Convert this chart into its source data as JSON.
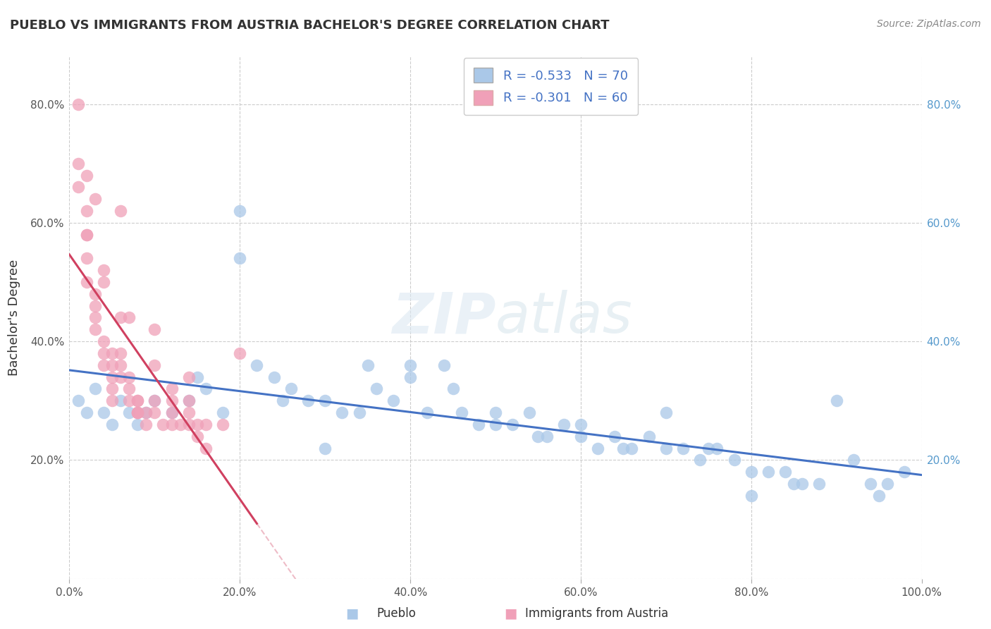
{
  "title": "PUEBLO VS IMMIGRANTS FROM AUSTRIA BACHELOR'S DEGREE CORRELATION CHART",
  "source": "Source: ZipAtlas.com",
  "ylabel": "Bachelor's Degree",
  "legend_label1": "Pueblo",
  "legend_label2": "Immigrants from Austria",
  "R1": -0.533,
  "N1": 70,
  "R2": -0.301,
  "N2": 60,
  "color_blue": "#aac8e8",
  "color_pink": "#f0a0b8",
  "line_color_blue": "#4472c4",
  "line_color_pink": "#d04060",
  "text_color_stat": "#4472c4",
  "xlim": [
    0.0,
    1.0
  ],
  "ylim": [
    0.0,
    0.88
  ],
  "x_ticks": [
    0.0,
    0.2,
    0.4,
    0.6,
    0.8,
    1.0
  ],
  "y_ticks": [
    0.0,
    0.2,
    0.4,
    0.6,
    0.8
  ],
  "x_tick_labels": [
    "0.0%",
    "20.0%",
    "40.0%",
    "60.0%",
    "80.0%",
    "100.0%"
  ],
  "y_tick_labels_left": [
    "",
    "20.0%",
    "40.0%",
    "60.0%",
    "80.0%"
  ],
  "y_tick_labels_right": [
    "",
    "20.0%",
    "40.0%",
    "60.0%",
    "80.0%"
  ],
  "blue_x": [
    0.01,
    0.02,
    0.03,
    0.04,
    0.05,
    0.06,
    0.07,
    0.08,
    0.09,
    0.1,
    0.12,
    0.14,
    0.16,
    0.18,
    0.2,
    0.22,
    0.24,
    0.26,
    0.28,
    0.3,
    0.32,
    0.34,
    0.36,
    0.38,
    0.4,
    0.42,
    0.44,
    0.46,
    0.48,
    0.5,
    0.52,
    0.54,
    0.56,
    0.58,
    0.6,
    0.62,
    0.64,
    0.66,
    0.68,
    0.7,
    0.72,
    0.74,
    0.76,
    0.78,
    0.8,
    0.82,
    0.84,
    0.86,
    0.88,
    0.9,
    0.92,
    0.94,
    0.96,
    0.98,
    0.3,
    0.35,
    0.4,
    0.2,
    0.25,
    0.55,
    0.65,
    0.75,
    0.85,
    0.95,
    0.15,
    0.45,
    0.7,
    0.6,
    0.5,
    0.8
  ],
  "blue_y": [
    0.3,
    0.28,
    0.32,
    0.28,
    0.26,
    0.3,
    0.28,
    0.26,
    0.28,
    0.3,
    0.28,
    0.3,
    0.32,
    0.28,
    0.62,
    0.36,
    0.34,
    0.32,
    0.3,
    0.3,
    0.28,
    0.28,
    0.32,
    0.3,
    0.34,
    0.28,
    0.36,
    0.28,
    0.26,
    0.28,
    0.26,
    0.28,
    0.24,
    0.26,
    0.24,
    0.22,
    0.24,
    0.22,
    0.24,
    0.28,
    0.22,
    0.2,
    0.22,
    0.2,
    0.18,
    0.18,
    0.18,
    0.16,
    0.16,
    0.3,
    0.2,
    0.16,
    0.16,
    0.18,
    0.22,
    0.36,
    0.36,
    0.54,
    0.3,
    0.24,
    0.22,
    0.22,
    0.16,
    0.14,
    0.34,
    0.32,
    0.22,
    0.26,
    0.26,
    0.14
  ],
  "pink_x": [
    0.01,
    0.01,
    0.01,
    0.02,
    0.02,
    0.02,
    0.02,
    0.03,
    0.03,
    0.03,
    0.03,
    0.04,
    0.04,
    0.04,
    0.04,
    0.05,
    0.05,
    0.05,
    0.05,
    0.06,
    0.06,
    0.06,
    0.06,
    0.07,
    0.07,
    0.07,
    0.08,
    0.08,
    0.08,
    0.08,
    0.09,
    0.09,
    0.1,
    0.1,
    0.1,
    0.11,
    0.12,
    0.12,
    0.12,
    0.13,
    0.14,
    0.14,
    0.14,
    0.15,
    0.15,
    0.16,
    0.16,
    0.18,
    0.2,
    0.04,
    0.06,
    0.08,
    0.1,
    0.12,
    0.14,
    0.02,
    0.02,
    0.03,
    0.05,
    0.07
  ],
  "pink_y": [
    0.8,
    0.7,
    0.66,
    0.62,
    0.58,
    0.54,
    0.5,
    0.48,
    0.46,
    0.44,
    0.42,
    0.4,
    0.38,
    0.36,
    0.5,
    0.36,
    0.34,
    0.32,
    0.3,
    0.44,
    0.38,
    0.36,
    0.34,
    0.32,
    0.34,
    0.3,
    0.3,
    0.28,
    0.3,
    0.28,
    0.28,
    0.26,
    0.3,
    0.28,
    0.36,
    0.26,
    0.3,
    0.26,
    0.28,
    0.26,
    0.3,
    0.28,
    0.26,
    0.26,
    0.24,
    0.26,
    0.22,
    0.26,
    0.38,
    0.52,
    0.62,
    0.28,
    0.42,
    0.32,
    0.34,
    0.68,
    0.58,
    0.64,
    0.38,
    0.44
  ]
}
